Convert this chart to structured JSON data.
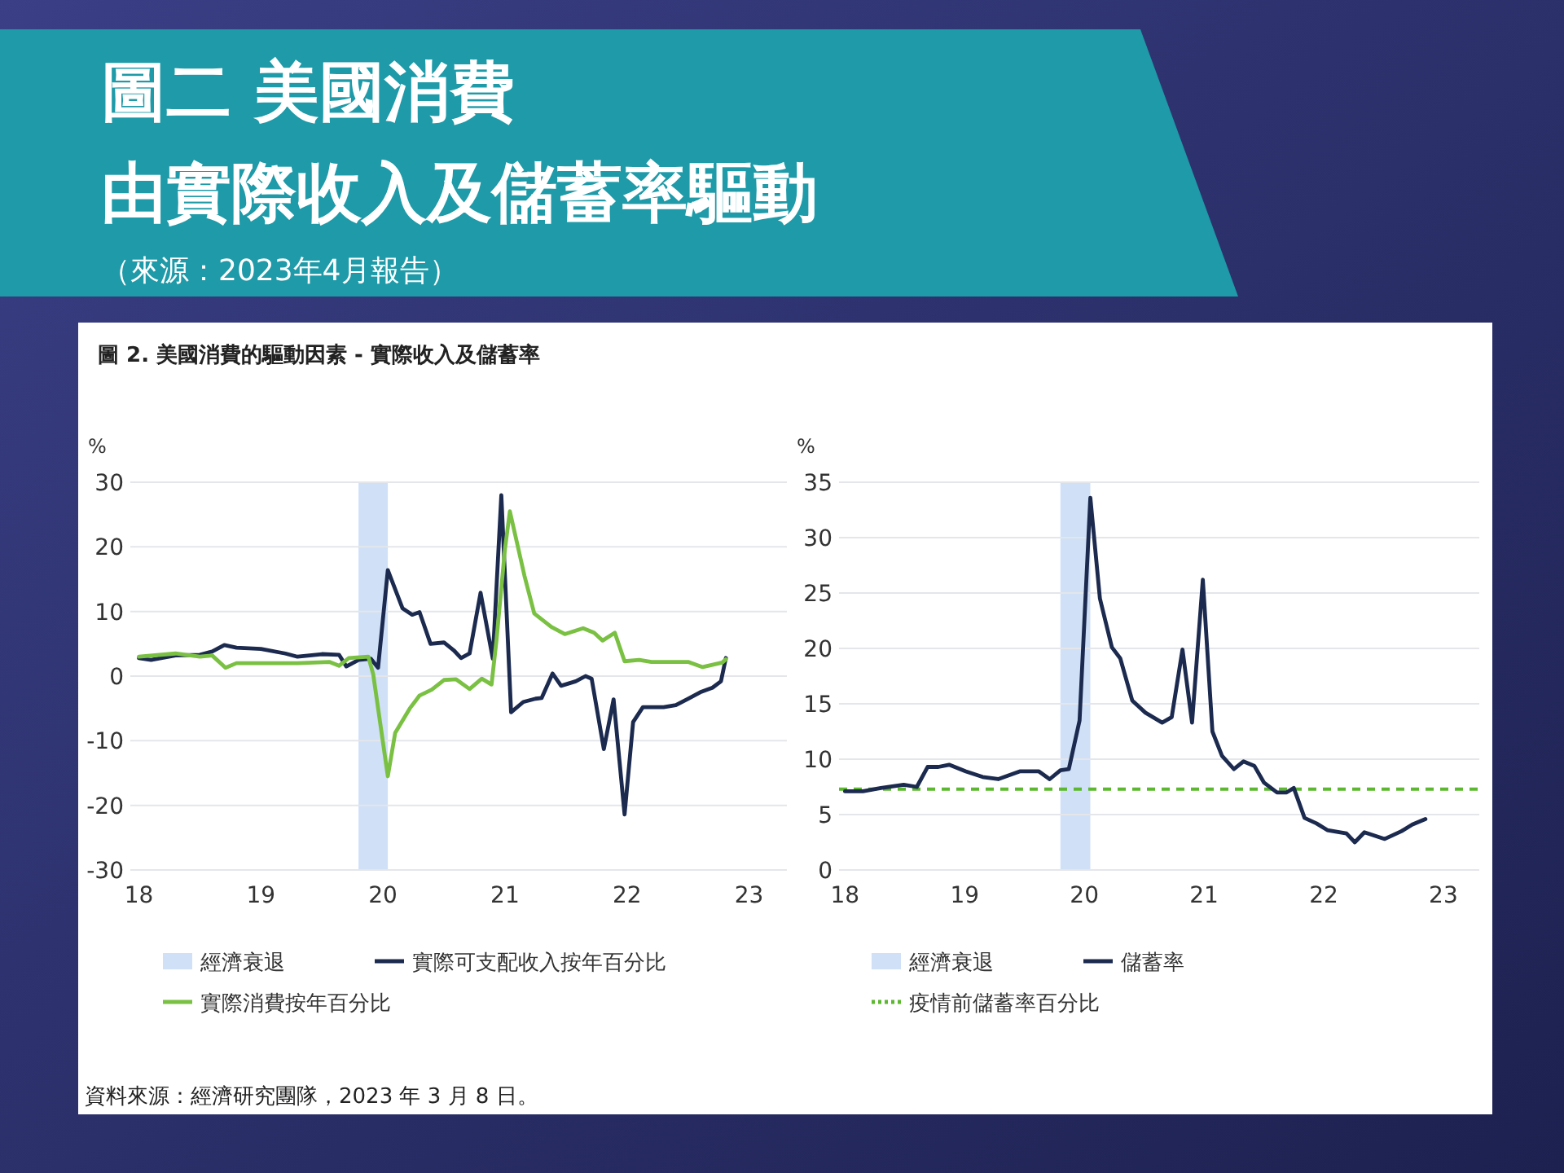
{
  "chart_data": [
    {
      "type": "line",
      "title": "圖二 美國消費",
      "subtitle": "由實際收入及儲蓄率驅動",
      "annotations": [
        "（來源：2023年4月報告）",
        "圖 2. 美國消費的驅動因素 - 實際收入及儲蓄率",
        "資料來源：經濟研究團隊，2023 年 3 月 8 日。"
      ],
      "ylabel": "%",
      "xlim": [
        2017.93,
        2023.31
      ],
      "xticks": [
        {
          "value": 2018,
          "label": "18"
        },
        {
          "value": 2019,
          "label": "19"
        },
        {
          "value": 2020,
          "label": "20"
        },
        {
          "value": 2021,
          "label": "21"
        },
        {
          "value": 2022,
          "label": "22"
        },
        {
          "value": 2023,
          "label": "23"
        }
      ],
      "ylim": [
        -30,
        30
      ],
      "yticks": [
        -30,
        -20,
        -10,
        0,
        10,
        20,
        30
      ],
      "grid": "y",
      "legend": "bottom",
      "bands": [
        {
          "axis": "x",
          "from": 2019.8,
          "to": 2020.04,
          "label": "經濟衰退",
          "color": "#cfe0f7"
        }
      ],
      "series": [
        {
          "name": "實際可支配收入按年百分比",
          "color": "#1b2a4e",
          "x": [
            2018.0,
            2018.1,
            2018.3,
            2018.5,
            2018.6,
            2018.7,
            2018.8,
            2019.0,
            2019.2,
            2019.3,
            2019.5,
            2019.64,
            2019.7,
            2019.8,
            2019.9,
            2019.96,
            2020.04,
            2020.16,
            2020.24,
            2020.3,
            2020.39,
            2020.5,
            2020.58,
            2020.64,
            2020.71,
            2020.8,
            2020.9,
            2020.97,
            2021.05,
            2021.15,
            2021.25,
            2021.3,
            2021.39,
            2021.46,
            2021.58,
            2021.66,
            2021.71,
            2021.81,
            2021.89,
            2021.98,
            2022.05,
            2022.13,
            2022.3,
            2022.4,
            2022.5,
            2022.6,
            2022.7,
            2022.77,
            2022.79,
            2022.81
          ],
          "values": [
            2.8,
            2.5,
            3.2,
            3.3,
            3.8,
            4.8,
            4.4,
            4.2,
            3.5,
            3.0,
            3.4,
            3.3,
            1.5,
            2.5,
            2.7,
            1.3,
            16.4,
            10.5,
            9.5,
            9.9,
            5.0,
            5.2,
            4.0,
            2.8,
            3.5,
            12.9,
            2.7,
            28.0,
            -5.6,
            -4.0,
            -3.5,
            -3.4,
            0.4,
            -1.5,
            -0.8,
            0.0,
            -0.4,
            -11.3,
            -3.6,
            -21.4,
            -7.1,
            -4.8,
            -4.8,
            -4.5,
            -3.5,
            -2.5,
            -1.8,
            -0.8,
            1.0,
            2.8
          ]
        },
        {
          "name": "實際消費按年百分比",
          "color": "#7ac143",
          "x": [
            2018.0,
            2018.3,
            2018.5,
            2018.6,
            2018.71,
            2018.8,
            2019.0,
            2019.3,
            2019.56,
            2019.64,
            2019.72,
            2019.88,
            2019.92,
            2020.04,
            2020.1,
            2020.22,
            2020.3,
            2020.4,
            2020.5,
            2020.6,
            2020.71,
            2020.81,
            2020.89,
            2020.93,
            2021.0,
            2021.04,
            2021.16,
            2021.24,
            2021.38,
            2021.49,
            2021.64,
            2021.73,
            2021.8,
            2021.9,
            2021.98,
            2022.1,
            2022.2,
            2022.5,
            2022.62,
            2022.78,
            2022.81
          ],
          "values": [
            3.0,
            3.5,
            3.0,
            3.2,
            1.3,
            2.0,
            2.0,
            2.0,
            2.2,
            1.6,
            2.8,
            3.0,
            0.3,
            -15.5,
            -8.8,
            -5.0,
            -3.0,
            -2.1,
            -0.6,
            -0.5,
            -2.0,
            -0.4,
            -1.3,
            5.5,
            19.7,
            25.5,
            15.5,
            9.7,
            7.6,
            6.5,
            7.4,
            6.7,
            5.5,
            6.7,
            2.3,
            2.5,
            2.2,
            2.2,
            1.4,
            2.1,
            2.6
          ]
        }
      ]
    },
    {
      "type": "line",
      "ylabel": "%",
      "xlim": [
        2017.95,
        2023.3
      ],
      "xticks": [
        {
          "value": 2018,
          "label": "18"
        },
        {
          "value": 2019,
          "label": "19"
        },
        {
          "value": 2020,
          "label": "20"
        },
        {
          "value": 2021,
          "label": "21"
        },
        {
          "value": 2022,
          "label": "22"
        },
        {
          "value": 2023,
          "label": "23"
        }
      ],
      "ylim": [
        0,
        35
      ],
      "yticks": [
        0,
        5,
        10,
        15,
        20,
        25,
        30,
        35
      ],
      "grid": "y",
      "legend": "bottom",
      "bands": [
        {
          "axis": "x",
          "from": 2019.8,
          "to": 2020.05,
          "label": "經濟衰退",
          "color": "#cfe0f7"
        }
      ],
      "ref_lines": [
        {
          "axis": "y",
          "value": 7.3,
          "label": "疫情前儲蓄率百分比",
          "color": "#5cb82e",
          "line_style": "dashed"
        }
      ],
      "series": [
        {
          "name": "儲蓄率",
          "color": "#1b2a4e",
          "x": [
            2018.0,
            2018.15,
            2018.3,
            2018.49,
            2018.6,
            2018.69,
            2018.78,
            2018.87,
            2019.01,
            2019.15,
            2019.28,
            2019.46,
            2019.62,
            2019.71,
            2019.8,
            2019.87,
            2019.96,
            2020.05,
            2020.13,
            2020.23,
            2020.3,
            2020.4,
            2020.51,
            2020.65,
            2020.73,
            2020.82,
            2020.9,
            2020.99,
            2021.07,
            2021.15,
            2021.25,
            2021.33,
            2021.42,
            2021.5,
            2021.61,
            2021.69,
            2021.75,
            2021.84,
            2021.94,
            2022.03,
            2022.19,
            2022.26,
            2022.34,
            2022.51,
            2022.65,
            2022.74,
            2022.85
          ],
          "values": [
            7.1,
            7.1,
            7.4,
            7.7,
            7.5,
            9.3,
            9.3,
            9.5,
            8.9,
            8.4,
            8.2,
            8.9,
            8.9,
            8.2,
            9.0,
            9.1,
            13.5,
            33.6,
            24.5,
            20.1,
            19.1,
            15.3,
            14.2,
            13.3,
            13.8,
            19.9,
            13.3,
            26.2,
            12.5,
            10.3,
            9.1,
            9.8,
            9.4,
            7.9,
            7.0,
            7.0,
            7.4,
            4.7,
            4.2,
            3.6,
            3.3,
            2.5,
            3.4,
            2.8,
            3.5,
            4.1,
            4.6
          ]
        }
      ]
    }
  ]
}
